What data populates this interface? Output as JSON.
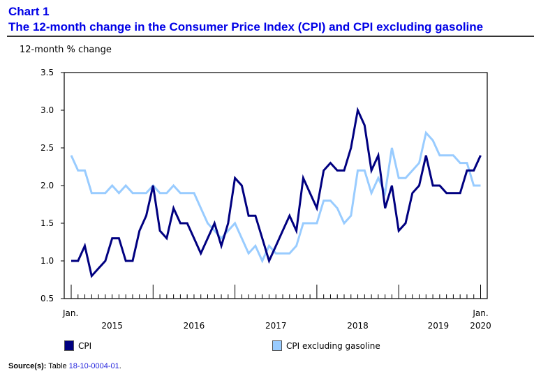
{
  "header": {
    "chart_label": "Chart 1",
    "title": "The 12-month change in the Consumer Price Index (CPI) and CPI excluding gasoline"
  },
  "colors": {
    "title": "#0000e6",
    "cpi": "#000080",
    "cpi_ex_gas": "#99ccff"
  },
  "source": {
    "label": "Source(s):",
    "text": "Table",
    "link_text": "18-10-0004-01",
    "suffix": "."
  },
  "chart_data": {
    "type": "line",
    "title": "The 12-month change in the Consumer Price Index (CPI) and CPI excluding gasoline",
    "ylabel": "12-month % change",
    "xlabel": "",
    "ylim": [
      0.5,
      3.5
    ],
    "yticks": [
      "0.5",
      "1.0",
      "1.5",
      "2.0",
      "2.5",
      "3.0",
      "3.5"
    ],
    "x_start": "Jan. 2015",
    "x_end": "Jan. 2020",
    "x_frequency": "monthly",
    "x_tick_labels": {
      "start_month": "Jan.",
      "end_month": "Jan.",
      "years": [
        "2015",
        "2016",
        "2017",
        "2018",
        "2019",
        "2020"
      ]
    },
    "grid": false,
    "legend_position": "bottom",
    "series": [
      {
        "name": "CPI",
        "values": [
          1.0,
          1.0,
          1.2,
          0.8,
          0.9,
          1.0,
          1.3,
          1.3,
          1.0,
          1.0,
          1.4,
          1.6,
          2.0,
          1.4,
          1.3,
          1.7,
          1.5,
          1.5,
          1.3,
          1.1,
          1.3,
          1.5,
          1.2,
          1.5,
          2.1,
          2.0,
          1.6,
          1.6,
          1.3,
          1.0,
          1.2,
          1.4,
          1.6,
          1.4,
          2.1,
          1.9,
          1.7,
          2.2,
          2.3,
          2.2,
          2.2,
          2.5,
          3.0,
          2.8,
          2.2,
          2.4,
          1.7,
          2.0,
          1.4,
          1.5,
          1.9,
          2.0,
          2.4,
          2.0,
          2.0,
          1.9,
          1.9,
          1.9,
          2.2,
          2.2,
          2.4
        ]
      },
      {
        "name": "CPI excluding gasoline",
        "values": [
          2.4,
          2.2,
          2.2,
          1.9,
          1.9,
          1.9,
          2.0,
          1.9,
          2.0,
          1.9,
          1.9,
          1.9,
          2.0,
          1.9,
          1.9,
          2.0,
          1.9,
          1.9,
          1.9,
          1.7,
          1.5,
          1.4,
          1.3,
          1.4,
          1.5,
          1.3,
          1.1,
          1.2,
          1.0,
          1.2,
          1.1,
          1.1,
          1.1,
          1.2,
          1.5,
          1.5,
          1.5,
          1.8,
          1.8,
          1.7,
          1.5,
          1.6,
          2.2,
          2.2,
          1.9,
          2.1,
          1.9,
          2.5,
          2.1,
          2.1,
          2.2,
          2.3,
          2.7,
          2.6,
          2.4,
          2.4,
          2.4,
          2.3,
          2.3,
          2.0,
          2.0
        ]
      }
    ]
  }
}
